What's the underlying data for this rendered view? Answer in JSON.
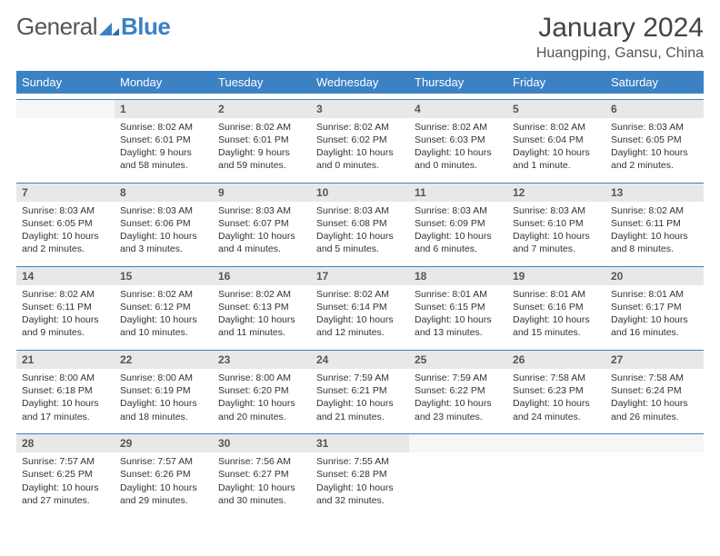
{
  "brand": {
    "name_a": "General",
    "name_b": "Blue"
  },
  "title": "January 2024",
  "location": "Huangping, Gansu, China",
  "colors": {
    "accent": "#3b82c4",
    "header_bg": "#3b82c4",
    "daynum_bg": "#e8e8e8",
    "text": "#333333"
  },
  "day_headers": [
    "Sunday",
    "Monday",
    "Tuesday",
    "Wednesday",
    "Thursday",
    "Friday",
    "Saturday"
  ],
  "weeks": [
    [
      null,
      {
        "n": "1",
        "sr": "Sunrise: 8:02 AM",
        "ss": "Sunset: 6:01 PM",
        "dl1": "Daylight: 9 hours",
        "dl2": "and 58 minutes."
      },
      {
        "n": "2",
        "sr": "Sunrise: 8:02 AM",
        "ss": "Sunset: 6:01 PM",
        "dl1": "Daylight: 9 hours",
        "dl2": "and 59 minutes."
      },
      {
        "n": "3",
        "sr": "Sunrise: 8:02 AM",
        "ss": "Sunset: 6:02 PM",
        "dl1": "Daylight: 10 hours",
        "dl2": "and 0 minutes."
      },
      {
        "n": "4",
        "sr": "Sunrise: 8:02 AM",
        "ss": "Sunset: 6:03 PM",
        "dl1": "Daylight: 10 hours",
        "dl2": "and 0 minutes."
      },
      {
        "n": "5",
        "sr": "Sunrise: 8:02 AM",
        "ss": "Sunset: 6:04 PM",
        "dl1": "Daylight: 10 hours",
        "dl2": "and 1 minute."
      },
      {
        "n": "6",
        "sr": "Sunrise: 8:03 AM",
        "ss": "Sunset: 6:05 PM",
        "dl1": "Daylight: 10 hours",
        "dl2": "and 2 minutes."
      }
    ],
    [
      {
        "n": "7",
        "sr": "Sunrise: 8:03 AM",
        "ss": "Sunset: 6:05 PM",
        "dl1": "Daylight: 10 hours",
        "dl2": "and 2 minutes."
      },
      {
        "n": "8",
        "sr": "Sunrise: 8:03 AM",
        "ss": "Sunset: 6:06 PM",
        "dl1": "Daylight: 10 hours",
        "dl2": "and 3 minutes."
      },
      {
        "n": "9",
        "sr": "Sunrise: 8:03 AM",
        "ss": "Sunset: 6:07 PM",
        "dl1": "Daylight: 10 hours",
        "dl2": "and 4 minutes."
      },
      {
        "n": "10",
        "sr": "Sunrise: 8:03 AM",
        "ss": "Sunset: 6:08 PM",
        "dl1": "Daylight: 10 hours",
        "dl2": "and 5 minutes."
      },
      {
        "n": "11",
        "sr": "Sunrise: 8:03 AM",
        "ss": "Sunset: 6:09 PM",
        "dl1": "Daylight: 10 hours",
        "dl2": "and 6 minutes."
      },
      {
        "n": "12",
        "sr": "Sunrise: 8:03 AM",
        "ss": "Sunset: 6:10 PM",
        "dl1": "Daylight: 10 hours",
        "dl2": "and 7 minutes."
      },
      {
        "n": "13",
        "sr": "Sunrise: 8:02 AM",
        "ss": "Sunset: 6:11 PM",
        "dl1": "Daylight: 10 hours",
        "dl2": "and 8 minutes."
      }
    ],
    [
      {
        "n": "14",
        "sr": "Sunrise: 8:02 AM",
        "ss": "Sunset: 6:11 PM",
        "dl1": "Daylight: 10 hours",
        "dl2": "and 9 minutes."
      },
      {
        "n": "15",
        "sr": "Sunrise: 8:02 AM",
        "ss": "Sunset: 6:12 PM",
        "dl1": "Daylight: 10 hours",
        "dl2": "and 10 minutes."
      },
      {
        "n": "16",
        "sr": "Sunrise: 8:02 AM",
        "ss": "Sunset: 6:13 PM",
        "dl1": "Daylight: 10 hours",
        "dl2": "and 11 minutes."
      },
      {
        "n": "17",
        "sr": "Sunrise: 8:02 AM",
        "ss": "Sunset: 6:14 PM",
        "dl1": "Daylight: 10 hours",
        "dl2": "and 12 minutes."
      },
      {
        "n": "18",
        "sr": "Sunrise: 8:01 AM",
        "ss": "Sunset: 6:15 PM",
        "dl1": "Daylight: 10 hours",
        "dl2": "and 13 minutes."
      },
      {
        "n": "19",
        "sr": "Sunrise: 8:01 AM",
        "ss": "Sunset: 6:16 PM",
        "dl1": "Daylight: 10 hours",
        "dl2": "and 15 minutes."
      },
      {
        "n": "20",
        "sr": "Sunrise: 8:01 AM",
        "ss": "Sunset: 6:17 PM",
        "dl1": "Daylight: 10 hours",
        "dl2": "and 16 minutes."
      }
    ],
    [
      {
        "n": "21",
        "sr": "Sunrise: 8:00 AM",
        "ss": "Sunset: 6:18 PM",
        "dl1": "Daylight: 10 hours",
        "dl2": "and 17 minutes."
      },
      {
        "n": "22",
        "sr": "Sunrise: 8:00 AM",
        "ss": "Sunset: 6:19 PM",
        "dl1": "Daylight: 10 hours",
        "dl2": "and 18 minutes."
      },
      {
        "n": "23",
        "sr": "Sunrise: 8:00 AM",
        "ss": "Sunset: 6:20 PM",
        "dl1": "Daylight: 10 hours",
        "dl2": "and 20 minutes."
      },
      {
        "n": "24",
        "sr": "Sunrise: 7:59 AM",
        "ss": "Sunset: 6:21 PM",
        "dl1": "Daylight: 10 hours",
        "dl2": "and 21 minutes."
      },
      {
        "n": "25",
        "sr": "Sunrise: 7:59 AM",
        "ss": "Sunset: 6:22 PM",
        "dl1": "Daylight: 10 hours",
        "dl2": "and 23 minutes."
      },
      {
        "n": "26",
        "sr": "Sunrise: 7:58 AM",
        "ss": "Sunset: 6:23 PM",
        "dl1": "Daylight: 10 hours",
        "dl2": "and 24 minutes."
      },
      {
        "n": "27",
        "sr": "Sunrise: 7:58 AM",
        "ss": "Sunset: 6:24 PM",
        "dl1": "Daylight: 10 hours",
        "dl2": "and 26 minutes."
      }
    ],
    [
      {
        "n": "28",
        "sr": "Sunrise: 7:57 AM",
        "ss": "Sunset: 6:25 PM",
        "dl1": "Daylight: 10 hours",
        "dl2": "and 27 minutes."
      },
      {
        "n": "29",
        "sr": "Sunrise: 7:57 AM",
        "ss": "Sunset: 6:26 PM",
        "dl1": "Daylight: 10 hours",
        "dl2": "and 29 minutes."
      },
      {
        "n": "30",
        "sr": "Sunrise: 7:56 AM",
        "ss": "Sunset: 6:27 PM",
        "dl1": "Daylight: 10 hours",
        "dl2": "and 30 minutes."
      },
      {
        "n": "31",
        "sr": "Sunrise: 7:55 AM",
        "ss": "Sunset: 6:28 PM",
        "dl1": "Daylight: 10 hours",
        "dl2": "and 32 minutes."
      },
      null,
      null,
      null
    ]
  ]
}
